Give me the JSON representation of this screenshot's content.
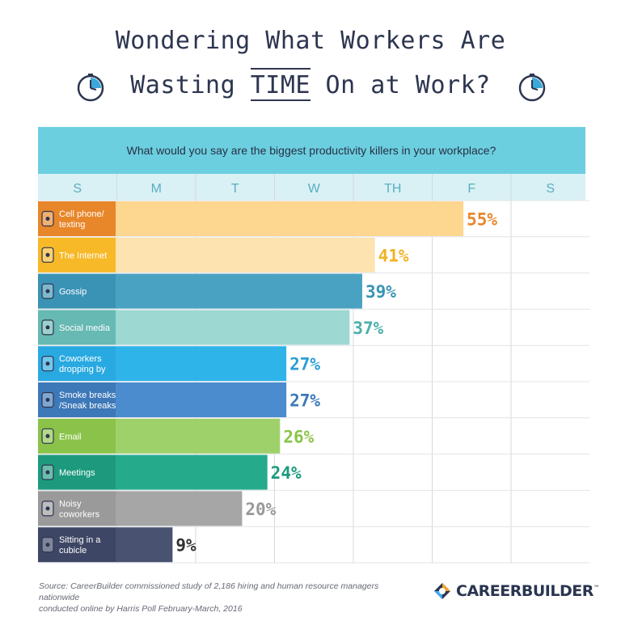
{
  "header": {
    "title_line1": "Wondering What Workers Are",
    "title_pre": "Wasting ",
    "title_emph": "TIME",
    "title_post": " On at Work?"
  },
  "chart_data": {
    "type": "bar",
    "title": "What would you say are the biggest productivity killers in your workplace?",
    "days": [
      "S",
      "M",
      "T",
      "W",
      "TH",
      "F",
      "S"
    ],
    "categories": [
      "Cell phone/ texting",
      "The Internet",
      "Gossip",
      "Social media",
      "Coworkers dropping by",
      "Smoke breaks /Sneak breaks",
      "Email",
      "Meetings",
      "Noisy coworkers",
      "Sitting in a cubicle"
    ],
    "values": [
      55,
      41,
      39,
      37,
      27,
      27,
      26,
      24,
      20,
      9
    ],
    "value_labels": [
      "55%",
      "41%",
      "39%",
      "37%",
      "27%",
      "27%",
      "26%",
      "24%",
      "20%",
      "9%"
    ],
    "xlim": [
      0,
      75
    ],
    "label_colors": [
      "#e8862a",
      "#f7b928",
      "#3a93b5",
      "#67b9b3",
      "#29a9e1",
      "#3d78b8",
      "#8bc34a",
      "#1d9a7e",
      "#9a9a9a",
      "#3d4664"
    ],
    "bar_colors": [
      "#fdd68f",
      "#fde3b0",
      "#4aa2c2",
      "#9ed8d2",
      "#2fb4ea",
      "#4a8ccd",
      "#9fd16b",
      "#25ab8c",
      "#a6a6a6",
      "#4a5272"
    ],
    "text_colors": [
      "#e8862a",
      "#f2b324",
      "#3a93b5",
      "#4bb0aa",
      "#2a9fd6",
      "#3b78b8",
      "#8bc34a",
      "#1d9a7e",
      "#999999",
      "#333333"
    ],
    "icons": [
      "phone-icon",
      "monitor-icon",
      "chat-icon",
      "head-icon",
      "pin-icon",
      "beanie-icon",
      "envelope-icon",
      "handshake-icon",
      "megaphone-icon",
      "chair-icon"
    ],
    "band_color": "#6ccfe0",
    "day_header_color": "#d9f1f5"
  },
  "footer": {
    "source_line1": "Source: CareerBuilder commissioned study of 2,186 hiring and human resource managers nationwide",
    "source_line2": "conducted online by Harris Poll February-March, 2016",
    "brand_name": "CAREERBUILDER",
    "trademark": "™"
  }
}
